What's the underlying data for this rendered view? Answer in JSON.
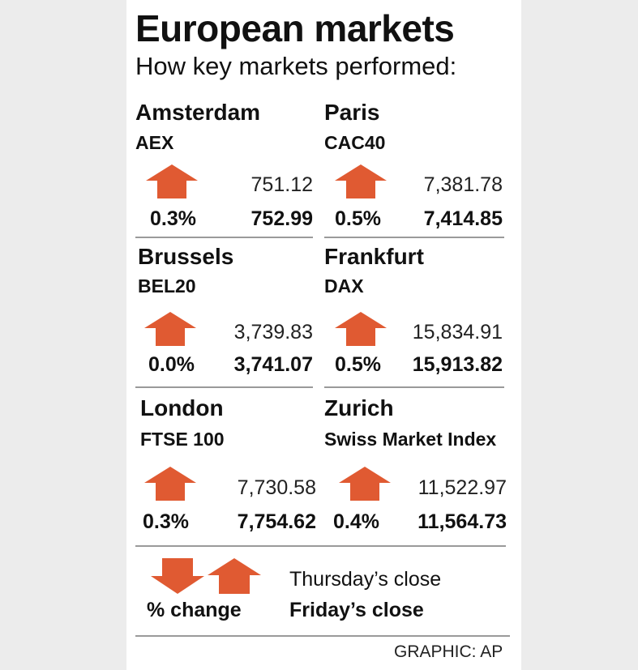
{
  "header": {
    "title": "European markets",
    "subtitle": "How key markets performed:"
  },
  "colors": {
    "arrow": "#e05a32",
    "rule": "#9a9a9a"
  },
  "chart_data": {
    "type": "table",
    "markets": [
      {
        "city": "Amsterdam",
        "index": "AEX",
        "direction": "up",
        "pct_change": "0.3%",
        "thursday_close": "751.12",
        "friday_close": "752.99"
      },
      {
        "city": "Paris",
        "index": "CAC40",
        "direction": "up",
        "pct_change": "0.5%",
        "thursday_close": "7,381.78",
        "friday_close": "7,414.85"
      },
      {
        "city": "Brussels",
        "index": "BEL20",
        "direction": "up",
        "pct_change": "0.0%",
        "thursday_close": "3,739.83",
        "friday_close": "3,741.07"
      },
      {
        "city": "Frankfurt",
        "index": "DAX",
        "direction": "up",
        "pct_change": "0.5%",
        "thursday_close": "15,834.91",
        "friday_close": "15,913.82"
      },
      {
        "city": "London",
        "index": "FTSE 100",
        "direction": "up",
        "pct_change": "0.3%",
        "thursday_close": "7,730.58",
        "friday_close": "7,754.62"
      },
      {
        "city": "Zurich",
        "index": "Swiss Market Index",
        "direction": "up",
        "pct_change": "0.4%",
        "thursday_close": "11,522.97",
        "friday_close": "11,564.73"
      }
    ]
  },
  "legend": {
    "pct_label": "% change",
    "thursday_label": "Thursday’s close",
    "friday_label": "Friday’s close"
  },
  "credit": "GRAPHIC: AP"
}
